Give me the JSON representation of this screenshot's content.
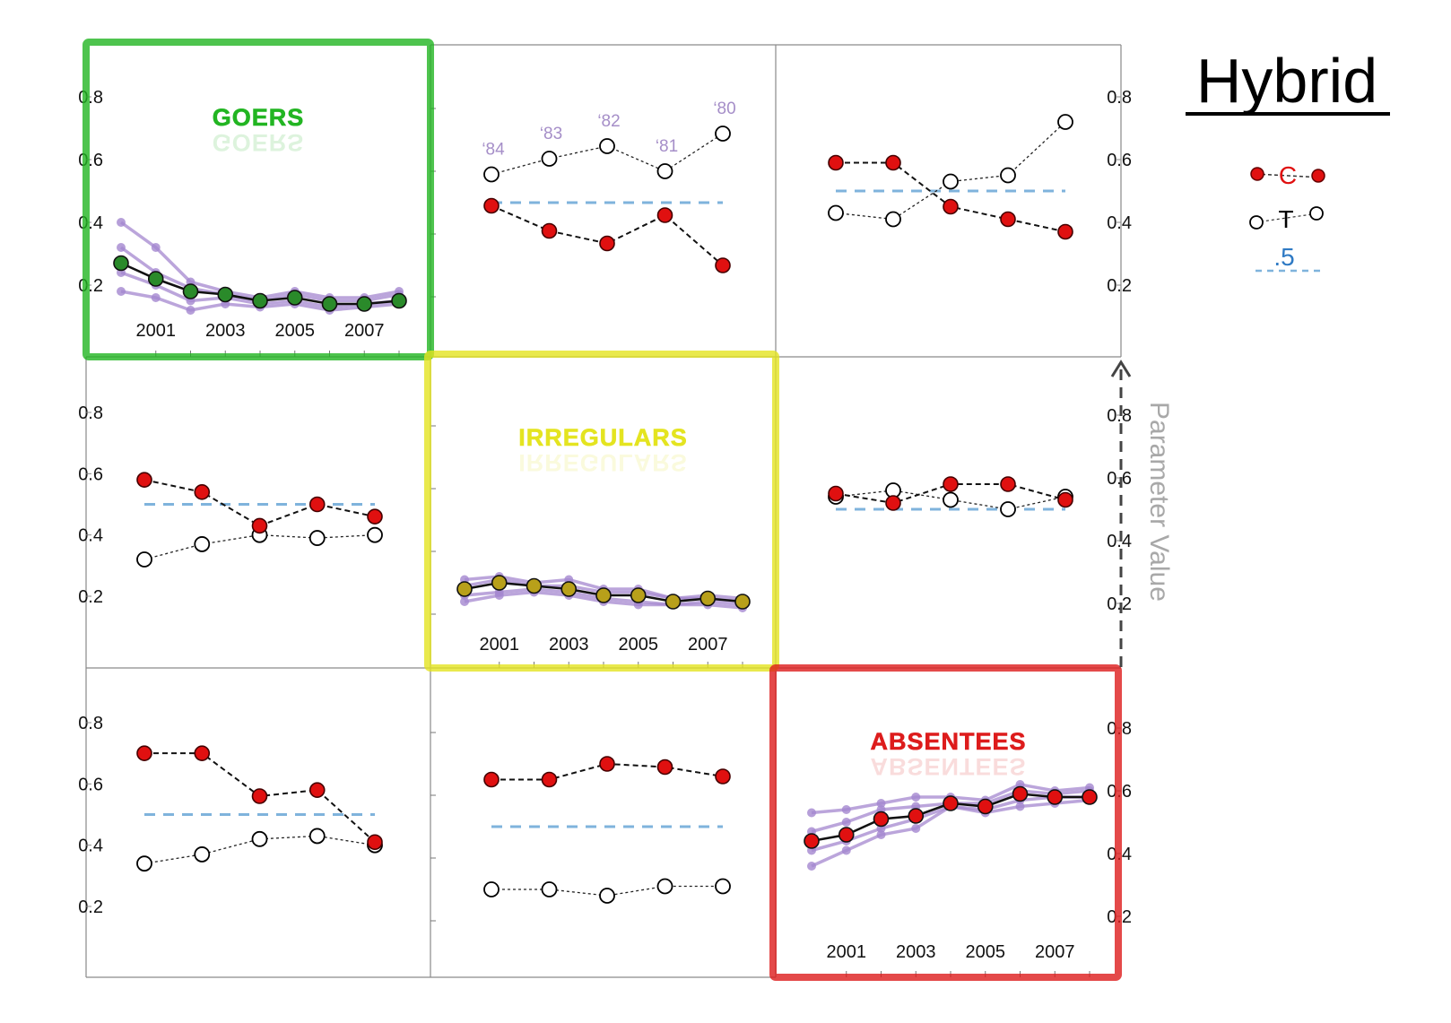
{
  "figure": {
    "title": "Hybrid",
    "axis_label": "Parameter Value",
    "legend": {
      "c_label": "C",
      "t_label": "T",
      "ref_label": ".5"
    },
    "colors": {
      "goers": "#22b522",
      "irregulars": "#e4e420",
      "absentees": "#dd1c1c",
      "c_marker": "#e01010",
      "t_marker": "#ffffff",
      "purple": "#a487cf",
      "ref_line": "#7fb3dc",
      "title_c": "#e01010",
      "title_t": "#000000",
      "title_ref": "#2f7ac4",
      "goers_marker": "#2a8a2a",
      "irregulars_marker": "#b8a01a",
      "absentees_marker": "#e01010"
    }
  },
  "chart_data": [
    {
      "name": "goers",
      "type": "line",
      "title": "GOERS",
      "x_ticks": [
        "2001",
        "2003",
        "2005",
        "2007"
      ],
      "y_ticks": [
        "0.8",
        "0.6",
        "0.4",
        "0.2"
      ],
      "ylim": [
        0,
        1
      ],
      "x": [
        2000,
        2001,
        2002,
        2003,
        2004,
        2005,
        2006,
        2007,
        2008
      ],
      "mean": [
        0.27,
        0.22,
        0.18,
        0.17,
        0.15,
        0.16,
        0.14,
        0.14,
        0.15
      ],
      "band": [
        [
          0.4,
          0.32,
          0.21,
          0.18,
          0.16,
          0.18,
          0.16,
          0.16,
          0.18
        ],
        [
          0.32,
          0.24,
          0.19,
          0.17,
          0.15,
          0.17,
          0.15,
          0.15,
          0.17
        ],
        [
          0.24,
          0.2,
          0.15,
          0.16,
          0.14,
          0.15,
          0.13,
          0.14,
          0.15
        ],
        [
          0.18,
          0.16,
          0.12,
          0.14,
          0.13,
          0.14,
          0.12,
          0.13,
          0.14
        ]
      ]
    },
    {
      "name": "goers-irregulars",
      "type": "line",
      "y_ticks": [],
      "x": [
        1,
        2,
        3,
        4,
        5
      ],
      "year_labels": [
        "‘84",
        "‘83",
        "‘82",
        "‘81",
        "‘80"
      ],
      "C": [
        0.49,
        0.41,
        0.37,
        0.46,
        0.3
      ],
      "T": [
        0.59,
        0.64,
        0.68,
        0.6,
        0.72
      ],
      "reference": 0.5,
      "ylim": [
        0,
        1
      ]
    },
    {
      "name": "goers-absentees",
      "type": "line",
      "y_ticks": [
        "0.8",
        "0.6",
        "0.4",
        "0.2"
      ],
      "x": [
        1,
        2,
        3,
        4,
        5
      ],
      "C": [
        0.59,
        0.59,
        0.45,
        0.41,
        0.37
      ],
      "T": [
        0.43,
        0.41,
        0.53,
        0.55,
        0.72
      ],
      "reference": 0.5,
      "ylim": [
        0,
        1
      ]
    },
    {
      "name": "irregulars-goers",
      "type": "line",
      "y_ticks": [
        "0.8",
        "0.6",
        "0.4",
        "0.2"
      ],
      "x": [
        1,
        2,
        3,
        4,
        5
      ],
      "C": [
        0.58,
        0.54,
        0.43,
        0.5,
        0.46
      ],
      "T": [
        0.32,
        0.37,
        0.4,
        0.39,
        0.4
      ],
      "reference": 0.5,
      "ylim": [
        0,
        1
      ]
    },
    {
      "name": "irregulars",
      "type": "line",
      "title": "IRREGULARS",
      "x_ticks": [
        "2001",
        "2003",
        "2005",
        "2007"
      ],
      "ylim": [
        0,
        1
      ],
      "x": [
        2000,
        2001,
        2002,
        2003,
        2004,
        2005,
        2006,
        2007,
        2008
      ],
      "mean": [
        0.28,
        0.3,
        0.29,
        0.28,
        0.26,
        0.26,
        0.24,
        0.25,
        0.24
      ],
      "band": [
        [
          0.31,
          0.32,
          0.3,
          0.31,
          0.28,
          0.28,
          0.25,
          0.26,
          0.25
        ],
        [
          0.29,
          0.31,
          0.29,
          0.29,
          0.27,
          0.27,
          0.25,
          0.25,
          0.24
        ],
        [
          0.26,
          0.27,
          0.28,
          0.27,
          0.25,
          0.24,
          0.23,
          0.24,
          0.23
        ],
        [
          0.24,
          0.26,
          0.27,
          0.26,
          0.24,
          0.23,
          0.23,
          0.23,
          0.22
        ]
      ]
    },
    {
      "name": "irregulars-absentees",
      "type": "line",
      "y_ticks": [
        "0.8",
        "0.6",
        "0.4",
        "0.2"
      ],
      "x": [
        1,
        2,
        3,
        4,
        5
      ],
      "C": [
        0.55,
        0.52,
        0.58,
        0.58,
        0.53
      ],
      "T": [
        0.54,
        0.56,
        0.53,
        0.5,
        0.54
      ],
      "reference": 0.5,
      "ylim": [
        0,
        1
      ]
    },
    {
      "name": "absentees-goers",
      "type": "line",
      "y_ticks": [
        "0.8",
        "0.6",
        "0.4",
        "0.2"
      ],
      "x": [
        1,
        2,
        3,
        4,
        5
      ],
      "C": [
        0.7,
        0.7,
        0.56,
        0.58,
        0.41
      ],
      "T": [
        0.34,
        0.37,
        0.42,
        0.43,
        0.4
      ],
      "reference": 0.5,
      "ylim": [
        0,
        1
      ]
    },
    {
      "name": "absentees-irregulars",
      "type": "line",
      "y_ticks": [],
      "x": [
        1,
        2,
        3,
        4,
        5
      ],
      "C": [
        0.65,
        0.65,
        0.7,
        0.69,
        0.66
      ],
      "T": [
        0.3,
        0.3,
        0.28,
        0.31,
        0.31
      ],
      "reference": 0.5,
      "ylim": [
        0,
        1
      ]
    },
    {
      "name": "absentees",
      "type": "line",
      "title": "ABSENTEES",
      "x_ticks": [
        "2001",
        "2003",
        "2005",
        "2007"
      ],
      "y_ticks": [
        "0.8",
        "0.6",
        "0.4",
        "0.2"
      ],
      "ylim": [
        0,
        1
      ],
      "x": [
        2000,
        2001,
        2002,
        2003,
        2004,
        2005,
        2006,
        2007,
        2008
      ],
      "mean": [
        0.44,
        0.46,
        0.51,
        0.52,
        0.56,
        0.55,
        0.59,
        0.58,
        0.58
      ],
      "band": [
        [
          0.53,
          0.54,
          0.56,
          0.58,
          0.58,
          0.57,
          0.62,
          0.6,
          0.61
        ],
        [
          0.47,
          0.5,
          0.54,
          0.55,
          0.56,
          0.56,
          0.6,
          0.59,
          0.6
        ],
        [
          0.41,
          0.44,
          0.48,
          0.51,
          0.55,
          0.54,
          0.57,
          0.58,
          0.58
        ],
        [
          0.36,
          0.41,
          0.46,
          0.48,
          0.55,
          0.53,
          0.55,
          0.56,
          0.57
        ]
      ]
    }
  ]
}
